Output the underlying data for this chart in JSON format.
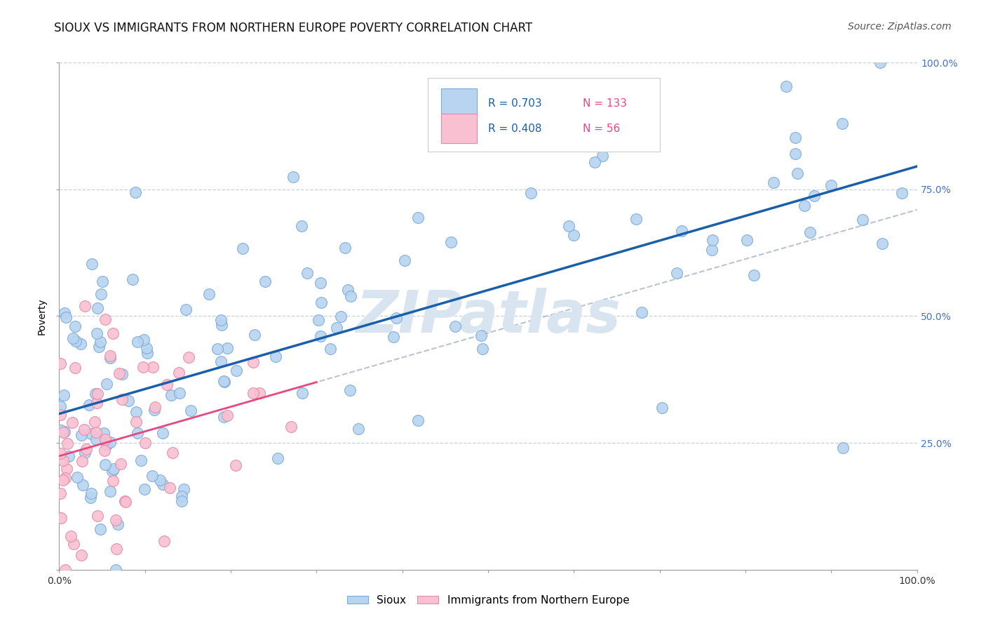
{
  "title": "SIOUX VS IMMIGRANTS FROM NORTHERN EUROPE POVERTY CORRELATION CHART",
  "source": "Source: ZipAtlas.com",
  "ylabel": "Poverty",
  "xlim": [
    0,
    1
  ],
  "ylim": [
    0,
    1
  ],
  "sioux_R": 0.703,
  "sioux_N": 133,
  "immigrants_R": 0.408,
  "immigrants_N": 56,
  "sioux_color": "#b8d4f0",
  "sioux_edge_color": "#7aaad8",
  "immigrants_color": "#f8c0d0",
  "immigrants_edge_color": "#e888a8",
  "line_sioux_color": "#1a5faa",
  "line_immigrants_color": "#e84880",
  "line_gray_color": "#b0b8c8",
  "watermark_color": "#d8e4f0",
  "background_color": "#ffffff",
  "grid_color": "#c8d0dc",
  "legend_R_color": "#1a5faa",
  "legend_N_color": "#e84880",
  "title_fontsize": 12,
  "source_fontsize": 10,
  "tick_fontsize": 10,
  "ylabel_fontsize": 10,
  "legend_fontsize": 11,
  "watermark_text": "ZIPatlas",
  "watermark_fontsize": 60
}
